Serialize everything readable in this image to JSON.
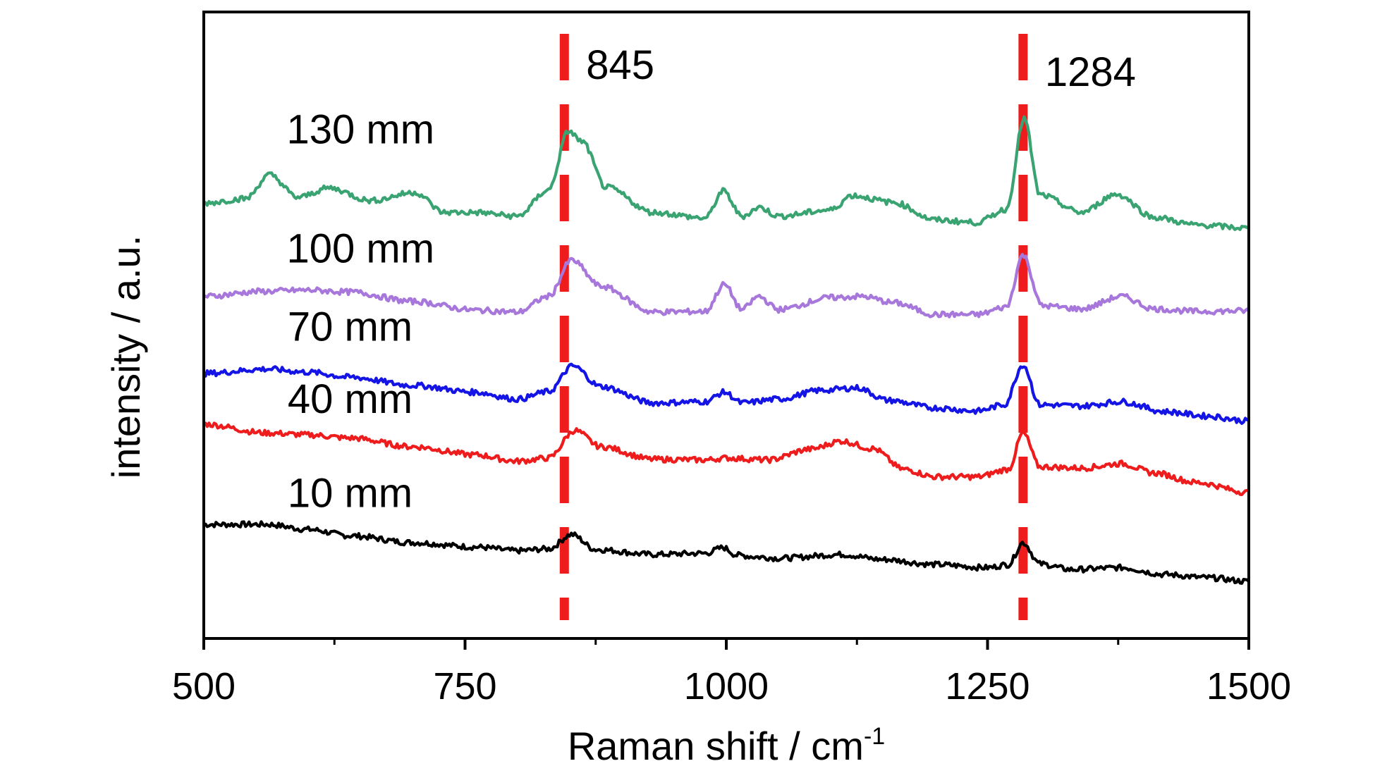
{
  "chart_data": {
    "type": "line",
    "title": "",
    "xlabel": "Raman shift / cm",
    "xlabel_superscript": "-1",
    "ylabel": "intensity / a.u.",
    "xlim": [
      500,
      1500
    ],
    "xticks": [
      500,
      750,
      1000,
      1250,
      1500
    ],
    "ylim": [
      0,
      100
    ],
    "y_ticks_shown": false,
    "grid": false,
    "legend": "none",
    "series": [
      {
        "name": "10 mm",
        "color": "#000000",
        "points": [
          [
            500,
            18.2
          ],
          [
            560,
            18.2
          ],
          [
            600,
            17.4
          ],
          [
            640,
            16.4
          ],
          [
            700,
            15.3
          ],
          [
            760,
            14.6
          ],
          [
            800,
            14.0
          ],
          [
            830,
            14.3
          ],
          [
            852,
            16.6
          ],
          [
            875,
            14.2
          ],
          [
            930,
            13.4
          ],
          [
            980,
            13.6
          ],
          [
            997,
            14.5
          ],
          [
            1010,
            13.3
          ],
          [
            1031,
            13.0
          ],
          [
            1050,
            12.8
          ],
          [
            1110,
            13.4
          ],
          [
            1150,
            12.6
          ],
          [
            1200,
            11.8
          ],
          [
            1250,
            11.3
          ],
          [
            1270,
            11.8
          ],
          [
            1284,
            15.3
          ],
          [
            1300,
            11.9
          ],
          [
            1330,
            11.0
          ],
          [
            1378,
            11.3
          ],
          [
            1420,
            10.2
          ],
          [
            1460,
            9.7
          ],
          [
            1500,
            9.1
          ]
        ]
      },
      {
        "name": "40 mm",
        "color": "#ee1c1c",
        "points": [
          [
            500,
            34.2
          ],
          [
            560,
            32.8
          ],
          [
            600,
            32.5
          ],
          [
            640,
            32.0
          ],
          [
            700,
            30.6
          ],
          [
            760,
            29.3
          ],
          [
            800,
            28.3
          ],
          [
            830,
            28.8
          ],
          [
            855,
            33.2
          ],
          [
            880,
            30.6
          ],
          [
            930,
            28.6
          ],
          [
            980,
            28.5
          ],
          [
            1000,
            28.8
          ],
          [
            1040,
            28.5
          ],
          [
            1080,
            30.2
          ],
          [
            1110,
            31.5
          ],
          [
            1140,
            30.3
          ],
          [
            1170,
            27.0
          ],
          [
            1200,
            25.8
          ],
          [
            1240,
            25.8
          ],
          [
            1270,
            27.0
          ],
          [
            1284,
            32.8
          ],
          [
            1300,
            27.4
          ],
          [
            1340,
            27.2
          ],
          [
            1378,
            27.9
          ],
          [
            1410,
            26.4
          ],
          [
            1450,
            24.9
          ],
          [
            1500,
            23.3
          ]
        ]
      },
      {
        "name": "70 mm",
        "color": "#1414e6",
        "points": [
          [
            500,
            42.3
          ],
          [
            560,
            43.0
          ],
          [
            600,
            42.5
          ],
          [
            640,
            41.7
          ],
          [
            700,
            40.4
          ],
          [
            760,
            39.3
          ],
          [
            800,
            38.2
          ],
          [
            830,
            39.4
          ],
          [
            853,
            43.5
          ],
          [
            880,
            40.2
          ],
          [
            930,
            37.6
          ],
          [
            980,
            37.8
          ],
          [
            998,
            39.3
          ],
          [
            1015,
            37.6
          ],
          [
            1050,
            38.2
          ],
          [
            1090,
            39.6
          ],
          [
            1125,
            40.0
          ],
          [
            1155,
            38.0
          ],
          [
            1200,
            36.8
          ],
          [
            1240,
            36.3
          ],
          [
            1266,
            37.3
          ],
          [
            1284,
            43.7
          ],
          [
            1300,
            37.3
          ],
          [
            1340,
            37.1
          ],
          [
            1378,
            37.8
          ],
          [
            1420,
            36.2
          ],
          [
            1460,
            35.5
          ],
          [
            1500,
            34.7
          ]
        ]
      },
      {
        "name": "100 mm",
        "color": "#a777db",
        "points": [
          [
            500,
            54.6
          ],
          [
            555,
            55.4
          ],
          [
            600,
            55.6
          ],
          [
            640,
            55.3
          ],
          [
            700,
            53.8
          ],
          [
            760,
            52.4
          ],
          [
            800,
            52.1
          ],
          [
            830,
            54.6
          ],
          [
            852,
            60.4
          ],
          [
            880,
            56.2
          ],
          [
            930,
            52.1
          ],
          [
            980,
            52.2
          ],
          [
            998,
            56.5
          ],
          [
            1015,
            52.5
          ],
          [
            1031,
            54.6
          ],
          [
            1050,
            52.5
          ],
          [
            1100,
            54.4
          ],
          [
            1130,
            54.6
          ],
          [
            1160,
            53.6
          ],
          [
            1200,
            51.7
          ],
          [
            1240,
            51.7
          ],
          [
            1268,
            52.9
          ],
          [
            1284,
            61.2
          ],
          [
            1302,
            53.1
          ],
          [
            1340,
            52.6
          ],
          [
            1378,
            54.6
          ],
          [
            1410,
            52.6
          ],
          [
            1450,
            52.2
          ],
          [
            1500,
            52.3
          ]
        ]
      },
      {
        "name": "130 mm",
        "color": "#3aa372",
        "points": [
          [
            500,
            69.5
          ],
          [
            540,
            70.2
          ],
          [
            563,
            74.0
          ],
          [
            590,
            70.4
          ],
          [
            620,
            71.9
          ],
          [
            660,
            69.9
          ],
          [
            702,
            71.2
          ],
          [
            730,
            68.0
          ],
          [
            760,
            68.0
          ],
          [
            800,
            67.4
          ],
          [
            830,
            71.6
          ],
          [
            849,
            81.0
          ],
          [
            862,
            79.3
          ],
          [
            885,
            72.0
          ],
          [
            930,
            68.0
          ],
          [
            980,
            67.1
          ],
          [
            997,
            71.4
          ],
          [
            1015,
            67.4
          ],
          [
            1032,
            68.8
          ],
          [
            1050,
            67.4
          ],
          [
            1100,
            68.4
          ],
          [
            1120,
            70.7
          ],
          [
            1160,
            69.6
          ],
          [
            1200,
            66.8
          ],
          [
            1240,
            66.4
          ],
          [
            1268,
            68.5
          ],
          [
            1285,
            83.0
          ],
          [
            1300,
            70.8
          ],
          [
            1340,
            68.0
          ],
          [
            1373,
            70.9
          ],
          [
            1410,
            67.2
          ],
          [
            1450,
            66.0
          ],
          [
            1500,
            65.5
          ]
        ]
      }
    ],
    "series_labels": [
      {
        "text": "130 mm",
        "x": 650,
        "y": 79.0
      },
      {
        "text": "100 mm",
        "x": 650,
        "y": 60.0
      },
      {
        "text": "70 mm",
        "x": 640,
        "y": 47.5
      },
      {
        "text": "40 mm",
        "x": 640,
        "y": 36.0
      },
      {
        "text": "10 mm",
        "x": 640,
        "y": 21.0
      }
    ],
    "reference_lines": [
      {
        "x": 845,
        "label": "845",
        "color": "#ee1c1c",
        "style": "dashed"
      },
      {
        "x": 1284,
        "label": "1284",
        "color": "#ee1c1c",
        "style": "dashed"
      }
    ]
  }
}
